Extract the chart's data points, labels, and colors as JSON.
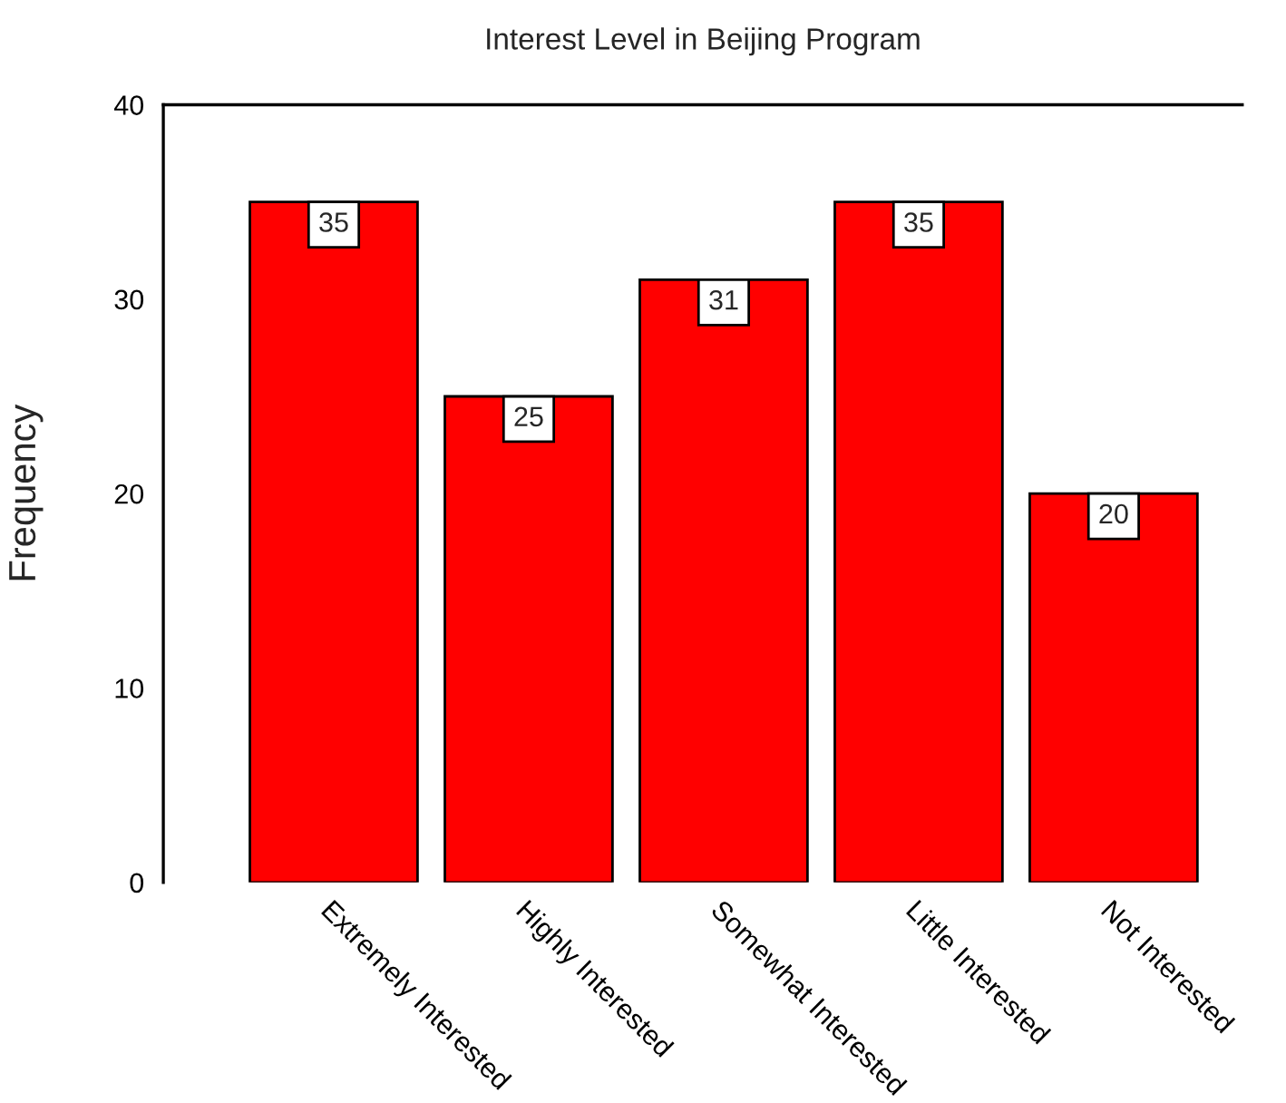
{
  "chart_data": {
    "type": "bar",
    "title": "Interest Level in Beijing Program",
    "ylabel": "Frequency",
    "categories": [
      "Extremely Interested",
      "Highly Interested",
      "Somewhat Interested",
      "Little Interested",
      "Not Interested"
    ],
    "values": [
      35,
      25,
      31,
      35,
      20
    ],
    "color": "#ff0000",
    "ylim": [
      0,
      40
    ],
    "yticks": [
      0,
      10,
      20,
      30,
      40
    ],
    "data_labels": true,
    "grid": false,
    "legend": false
  }
}
